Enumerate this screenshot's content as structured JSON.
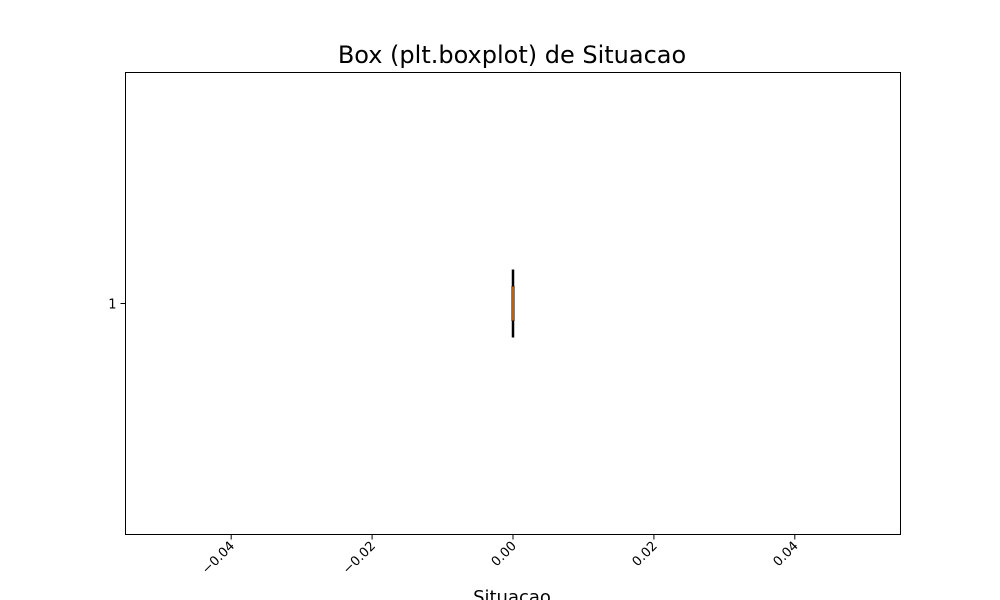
{
  "chart_data": {
    "type": "boxplot",
    "orientation": "horizontal",
    "title": "Box (plt.boxplot) de Situacao",
    "xlabel": "Situacao",
    "ylabel": "",
    "xlim": [
      -0.055,
      0.055
    ],
    "x_ticks": [
      -0.04,
      -0.02,
      0.0,
      0.02,
      0.04
    ],
    "x_tick_labels": [
      "−0.04",
      "−0.02",
      "0.00",
      "0.02",
      "0.04"
    ],
    "x_tick_rotation_deg": -45,
    "categories": [
      "1"
    ],
    "boxes": [
      {
        "category": "1",
        "whislo": 0.0,
        "q1": 0.0,
        "med": 0.0,
        "q3": 0.0,
        "whishi": 0.0
      }
    ],
    "grid": false,
    "colors": {
      "box": "#000000",
      "median": "#ff7f0e",
      "axes": "#000000",
      "background": "#ffffff"
    }
  }
}
